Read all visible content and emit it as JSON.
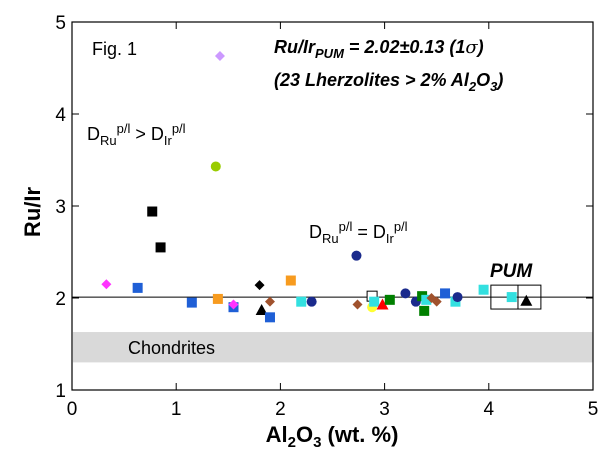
{
  "chart_data": {
    "type": "scatter",
    "xlabel": {
      "base": "Al",
      "sub1": "2",
      "mid": "O",
      "sub2": "3",
      "rest": " (wt. %)"
    },
    "ylabel": "Ru/Ir",
    "xlim": [
      0,
      5
    ],
    "ylim": [
      1,
      5
    ],
    "xticks": [
      "0",
      "1",
      "2",
      "3",
      "4",
      "5"
    ],
    "yticks": [
      "1",
      "2",
      "3",
      "4",
      "5"
    ],
    "grid": false,
    "reference_line": {
      "y": 2.01
    },
    "band": {
      "y": [
        1.3,
        1.63
      ],
      "label": "Chondrites",
      "color": "#d9d9d9"
    },
    "annotations": {
      "fig_label": "Fig. 1",
      "pum_line1": {
        "pre": "Ru/Ir",
        "sub": "PUM",
        "post": " = 2.02±0.13 (1",
        "sigma": "σ",
        "close": ")"
      },
      "pum_line2": {
        "pre": "(23 Lherzolites > 2% Al",
        "sub1": "2",
        "mid": "O",
        "sub2": "3",
        "close": ")"
      },
      "d_gt": {
        "d1": "D",
        "s1": "Ru",
        "p1": "p/l",
        "op": " > ",
        "d2": "D",
        "s2": "Ir",
        "p2": "p/l"
      },
      "d_eq": {
        "d1": "D",
        "s1": "Ru",
        "p1": "p/l",
        "op": " = ",
        "d2": "D",
        "s2": "Ir",
        "p2": "p/l"
      },
      "pum_label": "PUM",
      "pum_box": {
        "x": [
          4.02,
          4.5
        ],
        "y": [
          1.88,
          2.14
        ],
        "center_x": 4.28
      }
    },
    "points": [
      {
        "x": 1.42,
        "y": 4.63,
        "shape": "diamond",
        "color": "#cc99ff"
      },
      {
        "x": 1.38,
        "y": 3.43,
        "shape": "circle",
        "color": "#99cc00"
      },
      {
        "x": 0.77,
        "y": 2.94,
        "shape": "square",
        "color": "#000000"
      },
      {
        "x": 0.85,
        "y": 2.55,
        "shape": "square",
        "color": "#000000"
      },
      {
        "x": 0.33,
        "y": 2.15,
        "shape": "diamond",
        "color": "#ff33ff"
      },
      {
        "x": 0.63,
        "y": 2.11,
        "shape": "square",
        "color": "#1f5fd6"
      },
      {
        "x": 1.15,
        "y": 1.95,
        "shape": "square",
        "color": "#1f5fd6"
      },
      {
        "x": 1.4,
        "y": 1.99,
        "shape": "square",
        "color": "#f79b1f"
      },
      {
        "x": 1.55,
        "y": 1.9,
        "shape": "square",
        "color": "#1f5fd6"
      },
      {
        "x": 1.55,
        "y": 1.93,
        "shape": "diamond",
        "color": "#ff33ff"
      },
      {
        "x": 1.8,
        "y": 2.14,
        "shape": "diamond",
        "color": "#000000"
      },
      {
        "x": 1.82,
        "y": 1.87,
        "shape": "triangle",
        "color": "#000000"
      },
      {
        "x": 1.9,
        "y": 1.79,
        "shape": "square",
        "color": "#1f5fd6"
      },
      {
        "x": 1.9,
        "y": 1.96,
        "shape": "diamond",
        "color": "#a0522d"
      },
      {
        "x": 2.1,
        "y": 2.19,
        "shape": "square",
        "color": "#f79b1f"
      },
      {
        "x": 2.2,
        "y": 1.96,
        "shape": "square",
        "color": "#33e0e0"
      },
      {
        "x": 2.3,
        "y": 1.96,
        "shape": "circle",
        "color": "#1a2a8c"
      },
      {
        "x": 2.73,
        "y": 2.46,
        "shape": "circle",
        "color": "#1a2a8c"
      },
      {
        "x": 2.74,
        "y": 1.93,
        "shape": "diamond",
        "color": "#a0522d"
      },
      {
        "x": 2.88,
        "y": 2.02,
        "shape": "open_square",
        "color": "#000000"
      },
      {
        "x": 2.88,
        "y": 1.9,
        "shape": "circle",
        "color": "#ffff33"
      },
      {
        "x": 2.9,
        "y": 1.96,
        "shape": "square",
        "color": "#33e0e0"
      },
      {
        "x": 2.98,
        "y": 1.93,
        "shape": "triangle",
        "color": "#ff0000"
      },
      {
        "x": 3.05,
        "y": 1.98,
        "shape": "square",
        "color": "#008000"
      },
      {
        "x": 3.2,
        "y": 2.05,
        "shape": "circle",
        "color": "#1a2a8c"
      },
      {
        "x": 3.3,
        "y": 1.96,
        "shape": "circle",
        "color": "#1a2a8c"
      },
      {
        "x": 3.36,
        "y": 2.02,
        "shape": "square",
        "color": "#008000"
      },
      {
        "x": 3.38,
        "y": 1.86,
        "shape": "square",
        "color": "#008000"
      },
      {
        "x": 3.4,
        "y": 1.98,
        "shape": "square",
        "color": "#33e0e0"
      },
      {
        "x": 3.45,
        "y": 2.0,
        "shape": "diamond",
        "color": "#a0522d"
      },
      {
        "x": 3.5,
        "y": 1.96,
        "shape": "diamond",
        "color": "#a0522d"
      },
      {
        "x": 3.58,
        "y": 2.05,
        "shape": "square",
        "color": "#1f5fd6"
      },
      {
        "x": 3.68,
        "y": 1.96,
        "shape": "square",
        "color": "#33e0e0"
      },
      {
        "x": 3.7,
        "y": 2.01,
        "shape": "circle",
        "color": "#1a2a8c"
      },
      {
        "x": 3.95,
        "y": 2.09,
        "shape": "square",
        "color": "#33e0e0"
      },
      {
        "x": 4.22,
        "y": 2.01,
        "shape": "square",
        "color": "#33e0e0"
      },
      {
        "x": 4.36,
        "y": 1.97,
        "shape": "triangle",
        "color": "#000000"
      }
    ]
  }
}
